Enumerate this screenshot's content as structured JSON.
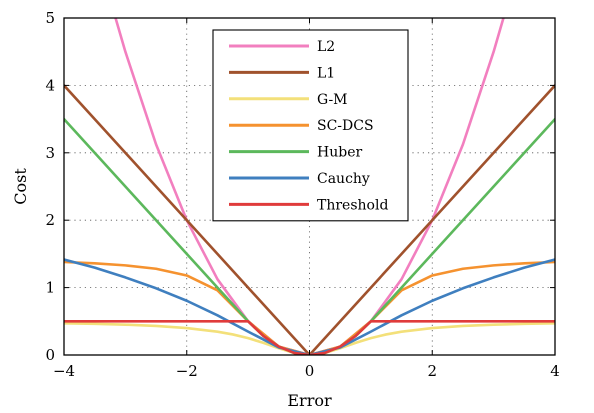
{
  "chart_data": {
    "type": "line",
    "title": "",
    "xlabel": "Error",
    "ylabel": "Cost",
    "xlim": [
      -4,
      4
    ],
    "ylim": [
      0,
      5
    ],
    "xticks": [
      -4,
      -2,
      0,
      2,
      4
    ],
    "yticks": [
      0,
      1,
      2,
      3,
      4,
      5
    ],
    "x_tick_labels": [
      "−4",
      "−2",
      "0",
      "2",
      "4"
    ],
    "y_tick_labels": [
      "0",
      "1",
      "2",
      "3",
      "4",
      "5"
    ],
    "grid": "dotted",
    "legend_position": "top-center",
    "series": [
      {
        "name": "L2",
        "color": "#f27fbf",
        "x": [
          -3.16,
          -3.0,
          -2.5,
          -2.0,
          -1.5,
          -1.0,
          -0.5,
          0,
          0.5,
          1.0,
          1.5,
          2.0,
          2.5,
          3.0,
          3.16
        ],
        "y": [
          5.0,
          4.5,
          3.125,
          2.0,
          1.125,
          0.5,
          0.125,
          0,
          0.125,
          0.5,
          1.125,
          2.0,
          3.125,
          4.5,
          5.0
        ]
      },
      {
        "name": "L1",
        "color": "#a0522d",
        "x": [
          -4,
          0,
          4
        ],
        "y": [
          4,
          0,
          4
        ]
      },
      {
        "name": "G-M",
        "color": "#f3e07a",
        "x": [
          -4,
          -3.5,
          -3,
          -2.5,
          -2,
          -1.5,
          -1.25,
          -1,
          -0.75,
          -0.5,
          -0.25,
          0,
          0.25,
          0.5,
          0.75,
          1,
          1.25,
          1.5,
          2,
          2.5,
          3,
          3.5,
          4
        ],
        "y": [
          0.47,
          0.462,
          0.45,
          0.431,
          0.4,
          0.346,
          0.305,
          0.25,
          0.18,
          0.1,
          0.029,
          0,
          0.029,
          0.1,
          0.18,
          0.25,
          0.305,
          0.346,
          0.4,
          0.431,
          0.45,
          0.462,
          0.47
        ]
      },
      {
        "name": "SC-DCS",
        "color": "#f5922f",
        "x": [
          -4,
          -3.5,
          -3,
          -2.5,
          -2,
          -1.5,
          -1,
          -0.5,
          0,
          0.5,
          1,
          1.5,
          2,
          2.5,
          3,
          3.5,
          4
        ],
        "y": [
          1.38,
          1.36,
          1.33,
          1.28,
          1.18,
          0.96,
          0.5,
          0.125,
          0,
          0.125,
          0.5,
          0.96,
          1.18,
          1.28,
          1.33,
          1.36,
          1.38
        ]
      },
      {
        "name": "Huber",
        "color": "#5cb85c",
        "x": [
          -4,
          -3,
          -2,
          -1,
          -0.75,
          -0.5,
          -0.25,
          0,
          0.25,
          0.5,
          0.75,
          1,
          2,
          3,
          4
        ],
        "y": [
          3.5,
          2.5,
          1.5,
          0.5,
          0.281,
          0.125,
          0.031,
          0,
          0.031,
          0.125,
          0.281,
          0.5,
          1.5,
          2.5,
          3.5
        ]
      },
      {
        "name": "Cauchy",
        "color": "#3f7fbf",
        "x": [
          -4,
          -3.5,
          -3,
          -2.5,
          -2,
          -1.5,
          -1,
          -0.5,
          0,
          0.5,
          1,
          1.5,
          2,
          2.5,
          3,
          3.5,
          4
        ],
        "y": [
          1.417,
          1.297,
          1.151,
          0.99,
          0.805,
          0.589,
          0.347,
          0.112,
          0,
          0.112,
          0.347,
          0.589,
          0.805,
          0.99,
          1.151,
          1.297,
          1.417
        ]
      },
      {
        "name": "Threshold",
        "color": "#e03b3b",
        "x": [
          -4,
          -1,
          -0.75,
          -0.5,
          -0.25,
          0,
          0.25,
          0.5,
          0.75,
          1,
          4
        ],
        "y": [
          0.5,
          0.5,
          0.281,
          0.125,
          0.031,
          0,
          0.031,
          0.125,
          0.281,
          0.5,
          0.5
        ]
      }
    ]
  }
}
